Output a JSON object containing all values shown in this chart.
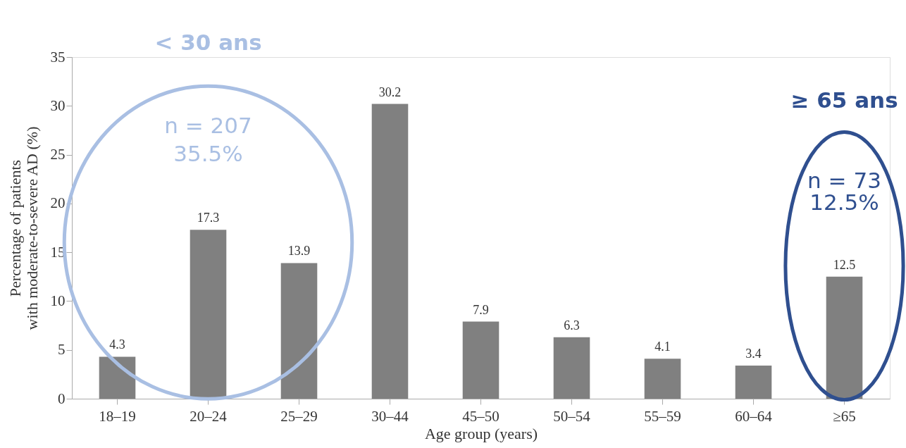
{
  "chart_data": {
    "type": "bar",
    "xlabel": "Age group (years)",
    "ylabel": "Percentage of patients with moderate-to-severe AD (%)",
    "categories": [
      "18–19",
      "20–24",
      "25–29",
      "30–44",
      "45–50",
      "50–54",
      "55–59",
      "60–64",
      "≥65"
    ],
    "values": [
      4.3,
      17.3,
      13.9,
      30.2,
      7.9,
      6.3,
      4.1,
      3.4,
      12.5
    ],
    "color": "#808080",
    "ylim": [
      0,
      35
    ],
    "yticks": [
      0,
      5,
      10,
      15,
      20,
      25,
      30,
      35
    ],
    "data_labels": true,
    "grid": false,
    "annotations": [
      "< 30 ans",
      "n = 207",
      "35.5%",
      "≥ 65 ans",
      "n = 73",
      "12.5%"
    ]
  }
}
